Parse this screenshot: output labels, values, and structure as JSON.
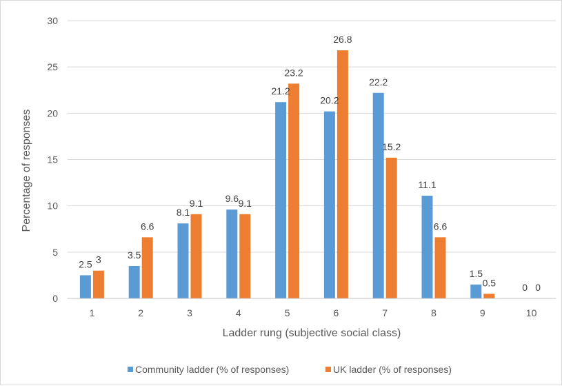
{
  "chart_data": {
    "type": "bar",
    "title": "",
    "xlabel": "Ladder rung (subjective social class)",
    "ylabel": "Percentage of responses",
    "ylim": [
      0,
      30
    ],
    "yticks": [
      0,
      5,
      10,
      15,
      20,
      25,
      30
    ],
    "grid": true,
    "legend_position": "bottom",
    "categories": [
      "1",
      "2",
      "3",
      "4",
      "5",
      "6",
      "7",
      "8",
      "9",
      "10"
    ],
    "series": [
      {
        "name": "Community ladder (% of responses)",
        "color": "#5b9bd5",
        "values": [
          2.5,
          3.5,
          8.1,
          9.6,
          21.2,
          20.2,
          22.2,
          11.1,
          1.5,
          0
        ]
      },
      {
        "name": "UK ladder  (% of responses)",
        "color": "#ed7d31",
        "values": [
          3,
          6.6,
          9.1,
          9.1,
          23.2,
          26.8,
          15.2,
          6.6,
          0.5,
          0
        ]
      }
    ]
  }
}
